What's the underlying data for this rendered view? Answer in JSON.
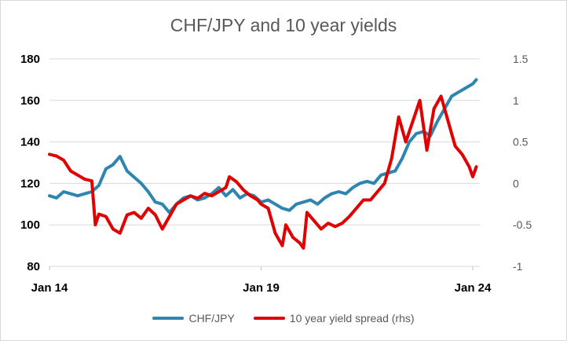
{
  "chart_data": {
    "type": "line",
    "title": "CHF/JPY and 10 year yields",
    "x_tick_labels": [
      "Jan 14",
      "Jan 19",
      "Jan 24"
    ],
    "x_range": [
      "2014-01",
      "2024-03"
    ],
    "y_left": {
      "ylim": [
        80,
        180
      ],
      "ticks": [
        "80",
        "100",
        "120",
        "140",
        "160",
        "180"
      ]
    },
    "y_right": {
      "ylim": [
        -1,
        1.5
      ],
      "ticks": [
        "-1",
        "-0.5",
        "0",
        "0.5",
        "1",
        "1.5"
      ]
    },
    "grid": "horizontal",
    "legend_position": "bottom",
    "series": [
      {
        "name": "CHF/JPY",
        "axis": "left",
        "color": "#2e86b0",
        "points": [
          [
            "2014-01",
            114
          ],
          [
            "2014-03",
            113
          ],
          [
            "2014-05",
            116
          ],
          [
            "2014-07",
            115
          ],
          [
            "2014-09",
            114
          ],
          [
            "2014-11",
            115
          ],
          [
            "2015-01",
            116
          ],
          [
            "2015-03",
            119
          ],
          [
            "2015-05",
            127
          ],
          [
            "2015-07",
            129
          ],
          [
            "2015-09",
            133
          ],
          [
            "2015-11",
            126
          ],
          [
            "2016-01",
            123
          ],
          [
            "2016-03",
            120
          ],
          [
            "2016-05",
            116
          ],
          [
            "2016-07",
            111
          ],
          [
            "2016-09",
            110
          ],
          [
            "2016-11",
            106
          ],
          [
            "2017-01",
            110
          ],
          [
            "2017-03",
            113
          ],
          [
            "2017-05",
            114
          ],
          [
            "2017-07",
            112
          ],
          [
            "2017-09",
            113
          ],
          [
            "2017-11",
            115
          ],
          [
            "2018-01",
            118
          ],
          [
            "2018-03",
            114
          ],
          [
            "2018-05",
            117
          ],
          [
            "2018-07",
            113
          ],
          [
            "2018-09",
            115
          ],
          [
            "2018-11",
            114
          ],
          [
            "2019-01",
            111
          ],
          [
            "2019-03",
            112
          ],
          [
            "2019-05",
            110
          ],
          [
            "2019-07",
            108
          ],
          [
            "2019-09",
            107
          ],
          [
            "2019-11",
            110
          ],
          [
            "2020-01",
            111
          ],
          [
            "2020-03",
            112
          ],
          [
            "2020-05",
            110
          ],
          [
            "2020-07",
            113
          ],
          [
            "2020-09",
            115
          ],
          [
            "2020-11",
            116
          ],
          [
            "2021-01",
            115
          ],
          [
            "2021-03",
            118
          ],
          [
            "2021-05",
            120
          ],
          [
            "2021-07",
            121
          ],
          [
            "2021-09",
            120
          ],
          [
            "2021-11",
            124
          ],
          [
            "2022-01",
            125
          ],
          [
            "2022-03",
            126
          ],
          [
            "2022-05",
            132
          ],
          [
            "2022-07",
            140
          ],
          [
            "2022-09",
            144
          ],
          [
            "2022-11",
            145
          ],
          [
            "2023-01",
            143
          ],
          [
            "2023-03",
            150
          ],
          [
            "2023-05",
            156
          ],
          [
            "2023-07",
            162
          ],
          [
            "2023-09",
            164
          ],
          [
            "2023-11",
            166
          ],
          [
            "2024-01",
            168
          ],
          [
            "2024-02",
            170
          ]
        ]
      },
      {
        "name": "10 year yield spread (rhs)",
        "axis": "right",
        "color": "#e00000",
        "points": [
          [
            "2014-01",
            0.35
          ],
          [
            "2014-03",
            0.33
          ],
          [
            "2014-05",
            0.28
          ],
          [
            "2014-07",
            0.15
          ],
          [
            "2014-09",
            0.1
          ],
          [
            "2014-11",
            0.05
          ],
          [
            "2015-01",
            0.03
          ],
          [
            "2015-02",
            -0.5
          ],
          [
            "2015-03",
            -0.37
          ],
          [
            "2015-05",
            -0.4
          ],
          [
            "2015-07",
            -0.55
          ],
          [
            "2015-09",
            -0.6
          ],
          [
            "2015-11",
            -0.38
          ],
          [
            "2016-01",
            -0.35
          ],
          [
            "2016-03",
            -0.42
          ],
          [
            "2016-05",
            -0.3
          ],
          [
            "2016-07",
            -0.38
          ],
          [
            "2016-09",
            -0.55
          ],
          [
            "2016-11",
            -0.4
          ],
          [
            "2017-01",
            -0.25
          ],
          [
            "2017-03",
            -0.2
          ],
          [
            "2017-05",
            -0.15
          ],
          [
            "2017-07",
            -0.18
          ],
          [
            "2017-09",
            -0.12
          ],
          [
            "2017-11",
            -0.15
          ],
          [
            "2018-01",
            -0.1
          ],
          [
            "2018-03",
            -0.05
          ],
          [
            "2018-04",
            0.08
          ],
          [
            "2018-06",
            0.02
          ],
          [
            "2018-08",
            -0.08
          ],
          [
            "2018-10",
            -0.15
          ],
          [
            "2018-12",
            -0.2
          ],
          [
            "2019-01",
            -0.25
          ],
          [
            "2019-03",
            -0.3
          ],
          [
            "2019-05",
            -0.6
          ],
          [
            "2019-07",
            -0.75
          ],
          [
            "2019-08",
            -0.5
          ],
          [
            "2019-10",
            -0.65
          ],
          [
            "2019-12",
            -0.72
          ],
          [
            "2020-01",
            -0.78
          ],
          [
            "2020-02",
            -0.35
          ],
          [
            "2020-04",
            -0.45
          ],
          [
            "2020-06",
            -0.55
          ],
          [
            "2020-08",
            -0.48
          ],
          [
            "2020-10",
            -0.52
          ],
          [
            "2020-12",
            -0.48
          ],
          [
            "2021-02",
            -0.4
          ],
          [
            "2021-04",
            -0.3
          ],
          [
            "2021-06",
            -0.2
          ],
          [
            "2021-08",
            -0.2
          ],
          [
            "2021-10",
            -0.1
          ],
          [
            "2021-12",
            0
          ],
          [
            "2022-02",
            0.3
          ],
          [
            "2022-04",
            0.8
          ],
          [
            "2022-06",
            0.5
          ],
          [
            "2022-08",
            0.75
          ],
          [
            "2022-10",
            1.0
          ],
          [
            "2022-12",
            0.4
          ],
          [
            "2023-02",
            0.9
          ],
          [
            "2023-04",
            1.05
          ],
          [
            "2023-06",
            0.75
          ],
          [
            "2023-08",
            0.45
          ],
          [
            "2023-10",
            0.35
          ],
          [
            "2023-12",
            0.2
          ],
          [
            "2024-01",
            0.08
          ],
          [
            "2024-02",
            0.2
          ]
        ]
      }
    ]
  }
}
